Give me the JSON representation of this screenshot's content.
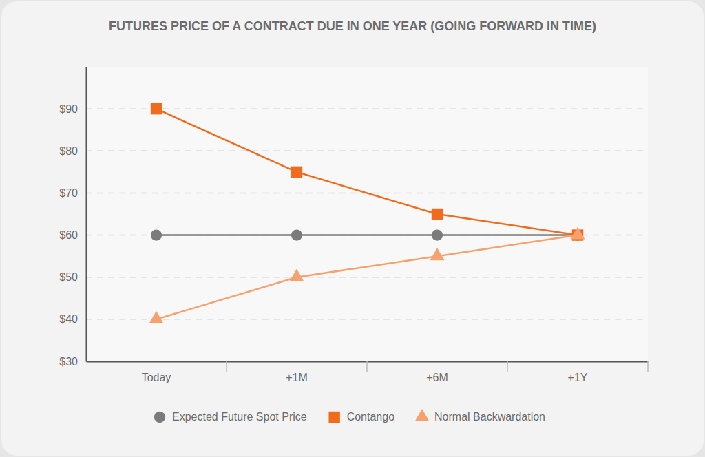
{
  "chart_data": {
    "type": "line",
    "title": "FUTURES PRICE OF A CONTRACT DUE IN ONE YEAR (GOING FORWARD IN TIME)",
    "categories": [
      "Today",
      "+1M",
      "+6M",
      "+1Y"
    ],
    "series": [
      {
        "name": "Expected Future Spot Price",
        "color": "#7b7b7b",
        "marker": "circle",
        "values": [
          60,
          60,
          60,
          60
        ]
      },
      {
        "name": "Contango",
        "color": "#f26b1d",
        "marker": "square",
        "values": [
          90,
          75,
          65,
          60
        ]
      },
      {
        "name": "Normal Backwardation",
        "color": "#f5a26f",
        "marker": "triangle",
        "values": [
          40,
          50,
          55,
          60
        ]
      }
    ],
    "ylim": [
      30,
      100
    ],
    "yticks": [
      {
        "value": 30,
        "label": "$30"
      },
      {
        "value": 40,
        "label": "$40"
      },
      {
        "value": 50,
        "label": "$50"
      },
      {
        "value": 60,
        "label": "$60"
      },
      {
        "value": 70,
        "label": "$70"
      },
      {
        "value": 80,
        "label": "$80"
      },
      {
        "value": 90,
        "label": "$90"
      }
    ],
    "grid": true,
    "legend": "bottom"
  }
}
